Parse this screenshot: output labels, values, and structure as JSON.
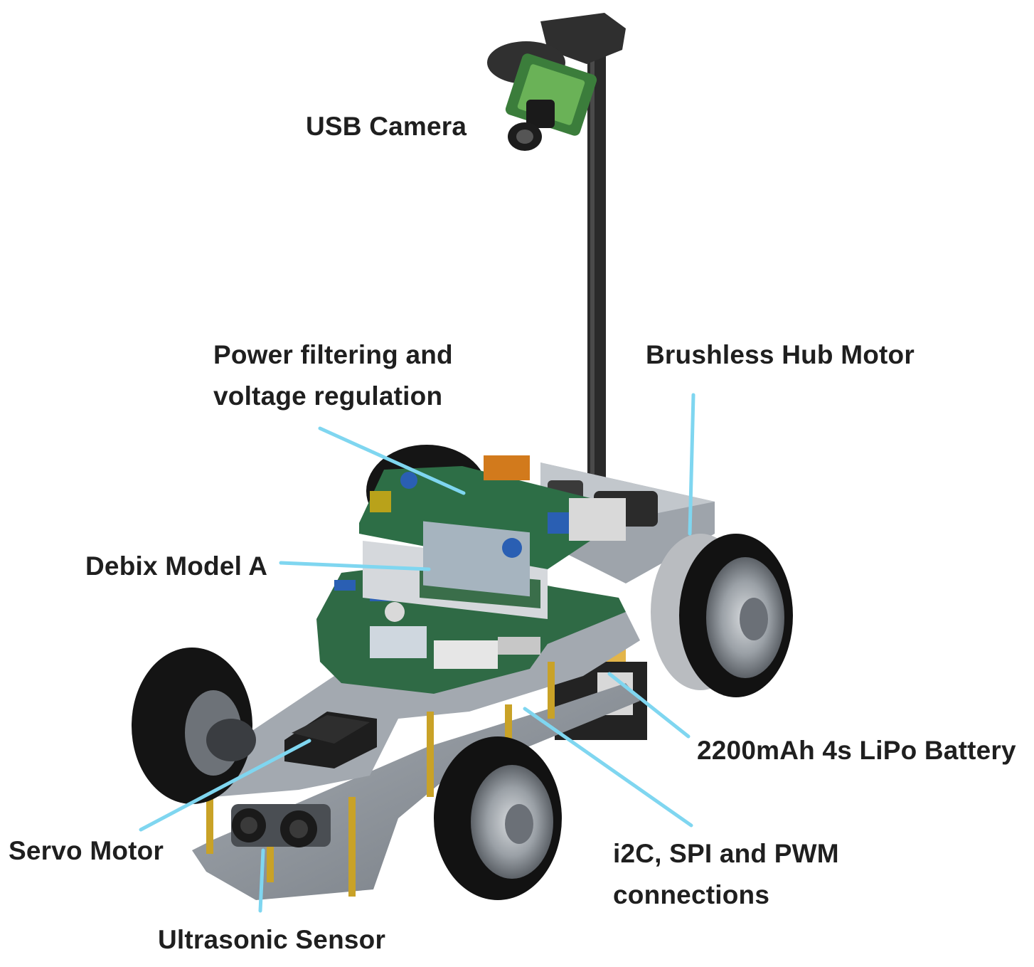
{
  "labels": {
    "usb_camera": "USB Camera",
    "power": [
      "Power filtering and",
      "voltage regulation"
    ],
    "brushless": "Brushless Hub Motor",
    "debix": "Debix Model A",
    "battery": "2200mAh 4s LiPo Battery",
    "servo": "Servo Motor",
    "i2c": [
      "i2C, SPI and PWM",
      "connections"
    ],
    "ultrasonic": "Ultrasonic Sensor"
  },
  "colors": {
    "leader": "#7fd6f0",
    "text": "#1f1f1f",
    "chassis": "#8d939b",
    "pcb": "#2f6a45",
    "tire": "#161616",
    "standoff": "#c9a227",
    "battery": "#e3b54a"
  }
}
